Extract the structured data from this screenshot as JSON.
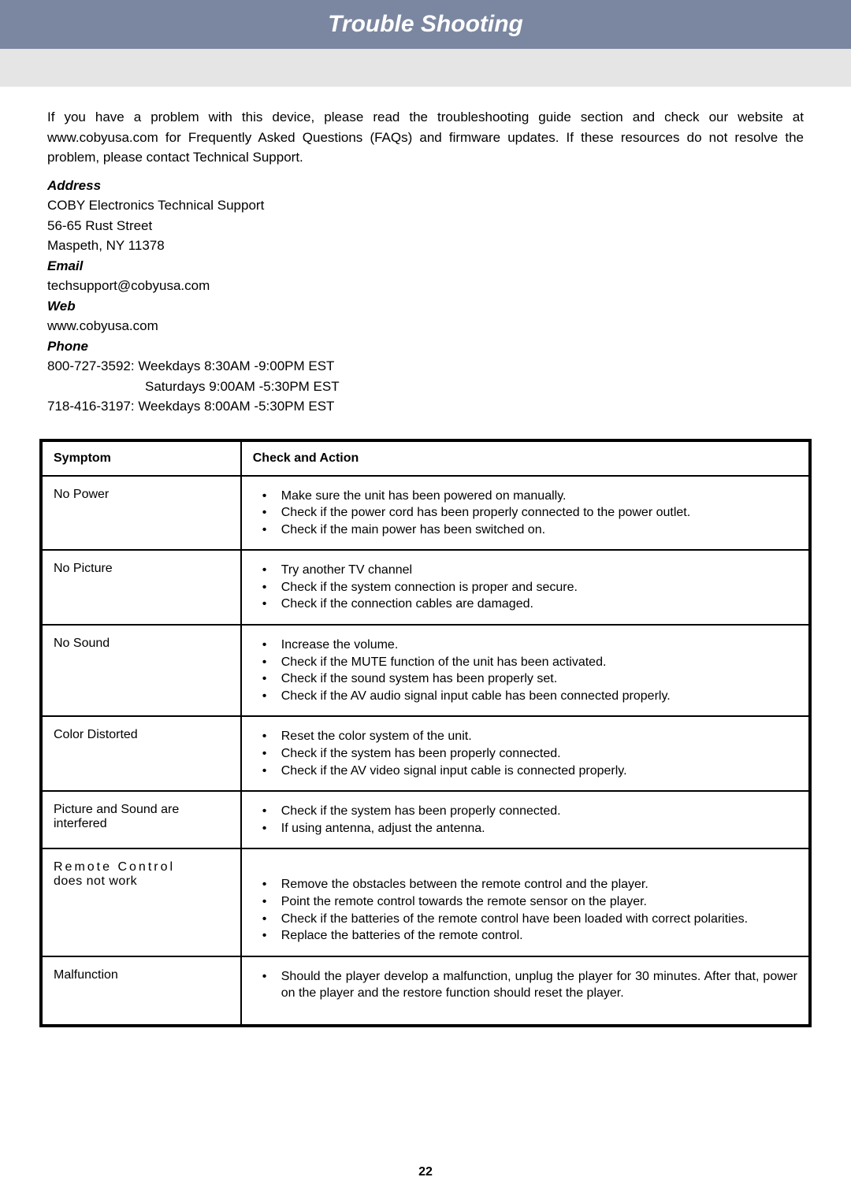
{
  "title": "Trouble Shooting",
  "intro": "If you have a problem with this device, please read the troubleshooting guide section and check our website at www.cobyusa.com for Frequently Asked Questions (FAQs) and firmware updates. If these resources do not resolve the problem, please contact Technical Support.",
  "labels": {
    "address": "Address",
    "email": "Email",
    "web": "Web",
    "phone": "Phone"
  },
  "address": {
    "line1": "COBY Electronics Technical Support",
    "line2": "56-65 Rust Street",
    "line3": "Maspeth, NY 11378"
  },
  "email": "techsupport@cobyusa.com",
  "web": "www.cobyusa.com",
  "phone": {
    "line1": "800-727-3592: Weekdays 8:30AM -9:00PM EST",
    "line2": "Saturdays 9:00AM -5:30PM EST",
    "line3": "718-416-3197: Weekdays 8:00AM -5:30PM EST"
  },
  "table": {
    "headers": {
      "symptom": "Symptom",
      "action": "Check and Action"
    },
    "rows": [
      {
        "symptom": "No Power",
        "items": [
          "Make sure the unit has been powered on manually.",
          "Check if the power cord has been properly connected to the power outlet.",
          "Check if the main power has been switched on."
        ]
      },
      {
        "symptom": "No Picture",
        "items": [
          "Try another TV channel",
          "Check if the system connection is proper and secure.",
          "Check if the connection cables are damaged."
        ]
      },
      {
        "symptom": "No Sound",
        "items": [
          "Increase the volume.",
          "Check if the MUTE function of the unit has been activated.",
          "Check if the sound system has been properly set.",
          "Check if the AV audio signal input cable has been connected properly."
        ]
      },
      {
        "symptom": "Color Distorted",
        "items": [
          "Reset the color system of the unit.",
          "Check if the system has been properly connected.",
          "Check if the AV video signal input cable is connected properly."
        ]
      },
      {
        "symptom": "Picture and Sound are interfered",
        "items": [
          "Check if the system has been properly connected.",
          "If using antenna, adjust the antenna."
        ]
      },
      {
        "symptom": "Remote Control does not work",
        "spacer": true,
        "items": [
          "Remove the obstacles between the remote control and the player.",
          "Point the remote control towards the remote sensor on the player.",
          "Check if the batteries of the remote control have been loaded with correct polarities.",
          "Replace the batteries of the remote control."
        ]
      },
      {
        "symptom": "Malfunction",
        "trailing": true,
        "items": [
          "Should the player develop a malfunction, unplug the player for 30 minutes. After that, power on the player and the restore function should reset the player."
        ]
      }
    ]
  },
  "page_number": "22",
  "colors": {
    "title_bg": "#7b87a0",
    "sub_bg": "#e5e5e5",
    "text": "#000000",
    "title_text": "#ffffff"
  }
}
